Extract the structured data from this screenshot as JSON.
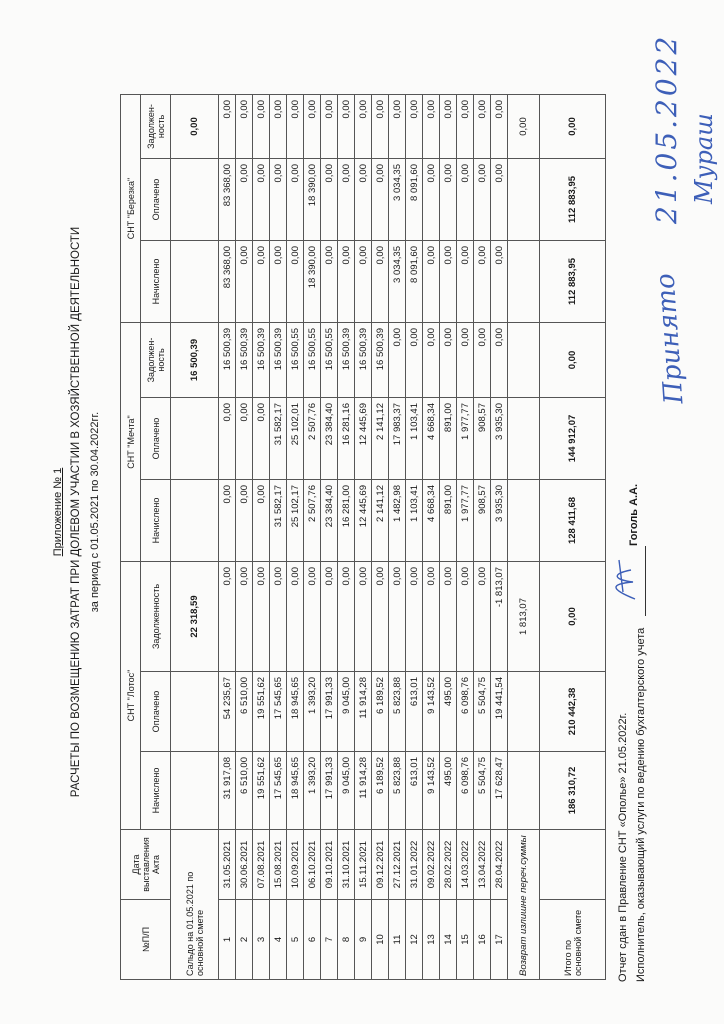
{
  "header": {
    "appendix": "Приложение № 1",
    "title": "РАСЧЕТЫ ПО ВОЗМЕЩЕНИЮ ЗАТРАТ ПРИ ДОЛЕВОМ УЧАСТИИ В ХОЗЯЙСТВЕННОЙ ДЕЯТЕЛЬНОСТИ",
    "period": "за период с 01.05.2021 по 30.04.2022гг."
  },
  "table": {
    "col_num": "№П/П",
    "col_date": "Дата выставления Акта",
    "groups": [
      "СНТ \"Лотос\"",
      "СНТ \"Мечта\"",
      "СНТ \"Березка\""
    ],
    "sub": {
      "charged": "Начислено",
      "paid": "Оплачено",
      "debt_lotos": "Задолженность",
      "debt": "Задолжен-ность"
    },
    "saldo": {
      "label": "Сальдо на 01.05.2021 по основной смете",
      "lotos_debt": "22 318,59",
      "mechta_debt": "16 500,39",
      "berezka_debt": "0,00"
    },
    "rows": [
      [
        "1",
        "31.05.2021",
        "31 917,08",
        "54 235,67",
        "0,00",
        "0,00",
        "0,00",
        "16 500,39",
        "83 368,00",
        "83 368,00",
        "0,00"
      ],
      [
        "2",
        "30.06.2021",
        "6 510,00",
        "6 510,00",
        "0,00",
        "0,00",
        "0,00",
        "16 500,39",
        "0,00",
        "0,00",
        "0,00"
      ],
      [
        "3",
        "07.08.2021",
        "19 551,62",
        "19 551,62",
        "0,00",
        "0,00",
        "0,00",
        "16 500,39",
        "0,00",
        "0,00",
        "0,00"
      ],
      [
        "4",
        "15.08.2021",
        "17 545,65",
        "17 545,65",
        "0,00",
        "31 582,17",
        "31 582,17",
        "16 500,39",
        "0,00",
        "0,00",
        "0,00"
      ],
      [
        "5",
        "10.09.2021",
        "18 945,65",
        "18 945,65",
        "0,00",
        "25 102,17",
        "25 102,01",
        "16 500,55",
        "0,00",
        "0,00",
        "0,00"
      ],
      [
        "6",
        "06.10.2021",
        "1 393,20",
        "1 393,20",
        "0,00",
        "2 507,76",
        "2 507,76",
        "16 500,55",
        "18 390,00",
        "18 390,00",
        "0,00"
      ],
      [
        "7",
        "09.10.2021",
        "17 991,33",
        "17 991,33",
        "0,00",
        "23 384,40",
        "23 384,40",
        "16 500,55",
        "0,00",
        "0,00",
        "0,00"
      ],
      [
        "8",
        "31.10.2021",
        "9 045,00",
        "9 045,00",
        "0,00",
        "16 281,00",
        "16 281,16",
        "16 500,39",
        "0,00",
        "0,00",
        "0,00"
      ],
      [
        "9",
        "15.11.2021",
        "11 914,28",
        "11 914,28",
        "0,00",
        "12 445,69",
        "12 445,69",
        "16 500,39",
        "0,00",
        "0,00",
        "0,00"
      ],
      [
        "10",
        "09.12.2021",
        "6 189,52",
        "6 189,52",
        "0,00",
        "2 141,12",
        "2 141,12",
        "16 500,39",
        "0,00",
        "0,00",
        "0,00"
      ],
      [
        "11",
        "27.12.2021",
        "5 823,88",
        "5 823,88",
        "0,00",
        "1 482,98",
        "17 983,37",
        "0,00",
        "3 034,35",
        "3 034,35",
        "0,00"
      ],
      [
        "12",
        "31.01.2022",
        "613,01",
        "613,01",
        "0,00",
        "1 103,41",
        "1 103,41",
        "0,00",
        "8 091,60",
        "8 091,60",
        "0,00"
      ],
      [
        "13",
        "09.02.2022",
        "9 143,52",
        "9 143,52",
        "0,00",
        "4 668,34",
        "4 668,34",
        "0,00",
        "0,00",
        "0,00",
        "0,00"
      ],
      [
        "14",
        "28.02.2022",
        "495,00",
        "495,00",
        "0,00",
        "891,00",
        "891,00",
        "0,00",
        "0,00",
        "0,00",
        "0,00"
      ],
      [
        "15",
        "14.03.2022",
        "6 098,76",
        "6 098,76",
        "0,00",
        "1 977,77",
        "1 977,77",
        "0,00",
        "0,00",
        "0,00",
        "0,00"
      ],
      [
        "16",
        "13.04.2022",
        "5 504,75",
        "5 504,75",
        "0,00",
        "908,57",
        "908,57",
        "0,00",
        "0,00",
        "0,00",
        "0,00"
      ],
      [
        "17",
        "28.04.2022",
        "17 628,47",
        "19 441,54",
        "-1 813,07",
        "3 935,30",
        "3 935,30",
        "0,00",
        "0,00",
        "0,00",
        "0,00"
      ]
    ],
    "refund": {
      "label": "Возврат излишне переч.суммы",
      "lotos_debt": "1 813,07",
      "berezka_debt": "0,00"
    },
    "total": {
      "label": "Итого по основной смете",
      "values": [
        "186 310,72",
        "210 442,38",
        "0,00",
        "128 411,68",
        "144 912,07",
        "0,00",
        "112 883,95",
        "112 883,95",
        "0,00"
      ]
    }
  },
  "footer": {
    "line1": "Отчет сдан в Правление СНТ «Ополье» 21.05.2022г.",
    "line2": "Исполнитель, оказывающий услуги по ведению бухгалтерского учета",
    "executor": "Гоголь А.А."
  },
  "handwriting": {
    "accepted": "Принято",
    "date": "21.05.2022",
    "signature": "Мураш"
  },
  "colors": {
    "ink": "#1a1a1a",
    "pen": "#3d5fb8"
  }
}
